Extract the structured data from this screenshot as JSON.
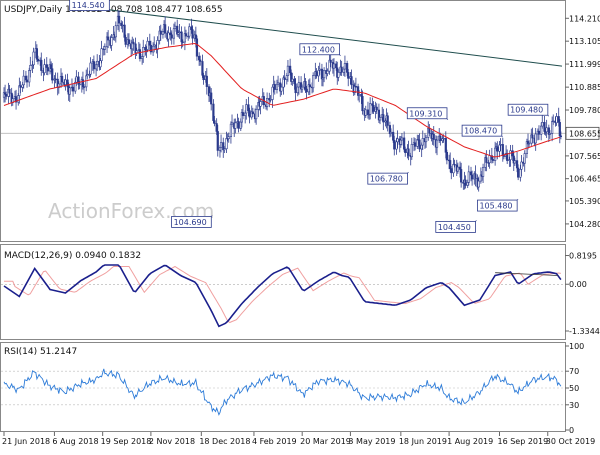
{
  "chart_data": [
    {
      "type": "candlestick",
      "panel": "price",
      "header": "USDJPY,Daily  108.632 108.708 108.477 108.655",
      "watermark": "ActionForex.com",
      "ylim": [
        103.6,
        114.9
      ],
      "y_ticks": [
        "114.210",
        "113.105",
        "111.999",
        "110.885",
        "109.780",
        "108.655",
        "107.565",
        "106.465",
        "105.390",
        "104.280"
      ],
      "current_price": "108.655",
      "annotations": [
        {
          "label": "114.540",
          "x": "2018-09-26",
          "y": 114.54
        },
        {
          "label": "104.690",
          "x": "2018-12-28",
          "y": 104.69
        },
        {
          "label": "112.400",
          "x": "2019-04-24",
          "y": 112.4
        },
        {
          "label": "109.310",
          "x": "2019-07-31",
          "y": 109.31
        },
        {
          "label": "106.780",
          "x": "2019-06-25",
          "y": 106.78
        },
        {
          "label": "104.450",
          "x": "2019-08-26",
          "y": 104.45
        },
        {
          "label": "108.470",
          "x": "2019-09-19",
          "y": 108.47
        },
        {
          "label": "105.480",
          "x": "2019-10-03",
          "y": 105.48
        },
        {
          "label": "109.480",
          "x": "2019-10-31",
          "y": 109.48
        }
      ],
      "trendline": {
        "from": [
          "2018-09-20",
          114.65
        ],
        "to": [
          "2019-11-12",
          111.9
        ]
      },
      "series": [
        {
          "name": "close",
          "points": [
            [
              "2018-06-21",
              110.4
            ],
            [
              "2018-07-05",
              110.5
            ],
            [
              "2018-07-19",
              112.4
            ],
            [
              "2018-08-02",
              111.6
            ],
            [
              "2018-08-16",
              110.9
            ],
            [
              "2018-08-30",
              111.0
            ],
            [
              "2018-09-13",
              112.0
            ],
            [
              "2018-09-20",
              112.6
            ],
            [
              "2018-10-04",
              114.0
            ],
            [
              "2018-10-18",
              112.6
            ],
            [
              "2018-11-01",
              112.7
            ],
            [
              "2018-11-15",
              113.6
            ],
            [
              "2018-11-29",
              113.4
            ],
            [
              "2018-12-13",
              113.4
            ],
            [
              "2018-12-20",
              111.2
            ],
            [
              "2018-12-27",
              110.6
            ],
            [
              "2019-01-03",
              107.7
            ],
            [
              "2019-01-10",
              108.4
            ],
            [
              "2019-01-24",
              109.5
            ],
            [
              "2019-02-07",
              109.8
            ],
            [
              "2019-02-21",
              110.6
            ],
            [
              "2019-03-07",
              111.5
            ],
            [
              "2019-03-21",
              110.7
            ],
            [
              "2019-04-04",
              111.5
            ],
            [
              "2019-04-18",
              111.9
            ],
            [
              "2019-04-25",
              111.7
            ],
            [
              "2019-05-02",
              111.5
            ],
            [
              "2019-05-16",
              109.8
            ],
            [
              "2019-05-30",
              109.7
            ],
            [
              "2019-06-13",
              108.3
            ],
            [
              "2019-06-27",
              107.8
            ],
            [
              "2019-07-11",
              108.5
            ],
            [
              "2019-07-25",
              108.4
            ],
            [
              "2019-08-01",
              107.3
            ],
            [
              "2019-08-15",
              106.4
            ],
            [
              "2019-08-29",
              106.5
            ],
            [
              "2019-09-12",
              107.9
            ],
            [
              "2019-09-26",
              107.6
            ],
            [
              "2019-10-03",
              106.8
            ],
            [
              "2019-10-17",
              108.6
            ],
            [
              "2019-10-31",
              108.9
            ],
            [
              "2019-11-07",
              109.2
            ],
            [
              "2019-11-12",
              108.655
            ]
          ]
        },
        {
          "name": "MA",
          "points": [
            [
              "2018-06-21",
              110.0
            ],
            [
              "2018-08-02",
              110.8
            ],
            [
              "2018-09-13",
              111.3
            ],
            [
              "2018-10-18",
              112.5
            ],
            [
              "2018-11-15",
              112.8
            ],
            [
              "2018-12-13",
              113.0
            ],
            [
              "2018-12-27",
              112.4
            ],
            [
              "2019-01-24",
              110.8
            ],
            [
              "2019-02-21",
              110.0
            ],
            [
              "2019-03-21",
              110.3
            ],
            [
              "2019-04-18",
              110.8
            ],
            [
              "2019-05-16",
              110.6
            ],
            [
              "2019-06-13",
              110.0
            ],
            [
              "2019-07-11",
              109.0
            ],
            [
              "2019-08-15",
              108.0
            ],
            [
              "2019-09-12",
              107.5
            ],
            [
              "2019-10-03",
              107.8
            ],
            [
              "2019-10-31",
              108.3
            ],
            [
              "2019-11-12",
              108.5
            ]
          ]
        }
      ]
    },
    {
      "type": "line",
      "panel": "macd",
      "header": "MACD(12,26,9) 0.0940 0.1832",
      "ylim": [
        -1.42,
        0.92
      ],
      "y_ticks": [
        "0.8195",
        "0.00",
        "-1.3344"
      ],
      "series": [
        {
          "name": "main",
          "points": [
            [
              "2018-06-21",
              -0.05
            ],
            [
              "2018-07-05",
              -0.35
            ],
            [
              "2018-07-19",
              0.45
            ],
            [
              "2018-08-02",
              -0.15
            ],
            [
              "2018-08-16",
              -0.25
            ],
            [
              "2018-08-30",
              0.1
            ],
            [
              "2018-09-13",
              0.35
            ],
            [
              "2018-09-20",
              0.55
            ],
            [
              "2018-10-04",
              0.55
            ],
            [
              "2018-10-18",
              -0.25
            ],
            [
              "2018-11-01",
              0.3
            ],
            [
              "2018-11-15",
              0.55
            ],
            [
              "2018-11-29",
              0.25
            ],
            [
              "2018-12-13",
              0.05
            ],
            [
              "2018-12-27",
              -0.75
            ],
            [
              "2019-01-03",
              -1.2
            ],
            [
              "2019-01-10",
              -1.1
            ],
            [
              "2019-01-24",
              -0.55
            ],
            [
              "2019-02-07",
              -0.1
            ],
            [
              "2019-02-21",
              0.3
            ],
            [
              "2019-03-07",
              0.5
            ],
            [
              "2019-03-21",
              -0.2
            ],
            [
              "2019-04-04",
              0.1
            ],
            [
              "2019-04-18",
              0.35
            ],
            [
              "2019-04-25",
              0.25
            ],
            [
              "2019-05-02",
              0.2
            ],
            [
              "2019-05-16",
              -0.5
            ],
            [
              "2019-05-30",
              -0.55
            ],
            [
              "2019-06-13",
              -0.6
            ],
            [
              "2019-06-27",
              -0.45
            ],
            [
              "2019-07-11",
              -0.1
            ],
            [
              "2019-07-25",
              0.05
            ],
            [
              "2019-08-01",
              -0.1
            ],
            [
              "2019-08-15",
              -0.6
            ],
            [
              "2019-08-29",
              -0.45
            ],
            [
              "2019-09-12",
              0.25
            ],
            [
              "2019-09-26",
              0.35
            ],
            [
              "2019-10-03",
              0.0
            ],
            [
              "2019-10-17",
              0.3
            ],
            [
              "2019-10-31",
              0.35
            ],
            [
              "2019-11-07",
              0.3
            ],
            [
              "2019-11-12",
              0.09
            ]
          ]
        }
      ]
    },
    {
      "type": "line",
      "panel": "rsi",
      "header": "RSI(14) 51.2147",
      "ylim": [
        0,
        100
      ],
      "y_ticks": [
        "100",
        "70",
        "50",
        "30",
        "0"
      ],
      "series": [
        {
          "name": "rsi",
          "points": [
            [
              "2018-06-21",
              55
            ],
            [
              "2018-07-05",
              48
            ],
            [
              "2018-07-19",
              69
            ],
            [
              "2018-08-02",
              52
            ],
            [
              "2018-08-16",
              45
            ],
            [
              "2018-08-30",
              55
            ],
            [
              "2018-09-13",
              60
            ],
            [
              "2018-09-20",
              68
            ],
            [
              "2018-10-04",
              65
            ],
            [
              "2018-10-18",
              40
            ],
            [
              "2018-11-01",
              55
            ],
            [
              "2018-11-15",
              62
            ],
            [
              "2018-11-29",
              55
            ],
            [
              "2018-12-13",
              56
            ],
            [
              "2018-12-27",
              28
            ],
            [
              "2019-01-03",
              20
            ],
            [
              "2019-01-10",
              35
            ],
            [
              "2019-01-24",
              48
            ],
            [
              "2019-02-07",
              55
            ],
            [
              "2019-02-21",
              65
            ],
            [
              "2019-03-07",
              62
            ],
            [
              "2019-03-21",
              42
            ],
            [
              "2019-04-04",
              58
            ],
            [
              "2019-04-18",
              60
            ],
            [
              "2019-04-25",
              58
            ],
            [
              "2019-05-02",
              55
            ],
            [
              "2019-05-16",
              38
            ],
            [
              "2019-05-30",
              40
            ],
            [
              "2019-06-13",
              38
            ],
            [
              "2019-06-27",
              42
            ],
            [
              "2019-07-11",
              55
            ],
            [
              "2019-07-25",
              50
            ],
            [
              "2019-08-01",
              38
            ],
            [
              "2019-08-15",
              32
            ],
            [
              "2019-08-29",
              45
            ],
            [
              "2019-09-12",
              64
            ],
            [
              "2019-09-26",
              55
            ],
            [
              "2019-10-03",
              45
            ],
            [
              "2019-10-17",
              60
            ],
            [
              "2019-10-31",
              63
            ],
            [
              "2019-11-07",
              60
            ],
            [
              "2019-11-12",
              51
            ]
          ]
        }
      ]
    }
  ],
  "x_axis": {
    "labels": [
      "21 Jun 2018",
      "6 Aug 2018",
      "19 Sep 2018",
      "2 Nov 2018",
      "18 Dec 2018",
      "4 Feb 2019",
      "20 Mar 2019",
      "3 May 2019",
      "18 Jun 2019",
      "1 Aug 2019",
      "16 Sep 2019",
      "30 Oct 2019"
    ],
    "dates": [
      "2018-06-21",
      "2018-08-06",
      "2018-09-19",
      "2018-11-02",
      "2018-12-18",
      "2019-02-04",
      "2019-03-20",
      "2019-05-03",
      "2019-06-18",
      "2019-08-01",
      "2019-09-16",
      "2019-10-30"
    ]
  },
  "colors": {
    "price_up": "#2b3a8c",
    "price_down": "#2b3a8c",
    "ma": "#e32020",
    "trendline": "#1f4d4d",
    "macd_main": "#1a1f8c",
    "macd_signal": "#f0a0a0",
    "rsi": "#2e7cd8",
    "label_border": "#2b3a8c",
    "grid": "#c8c8c8",
    "watermark": "#cccccc"
  }
}
